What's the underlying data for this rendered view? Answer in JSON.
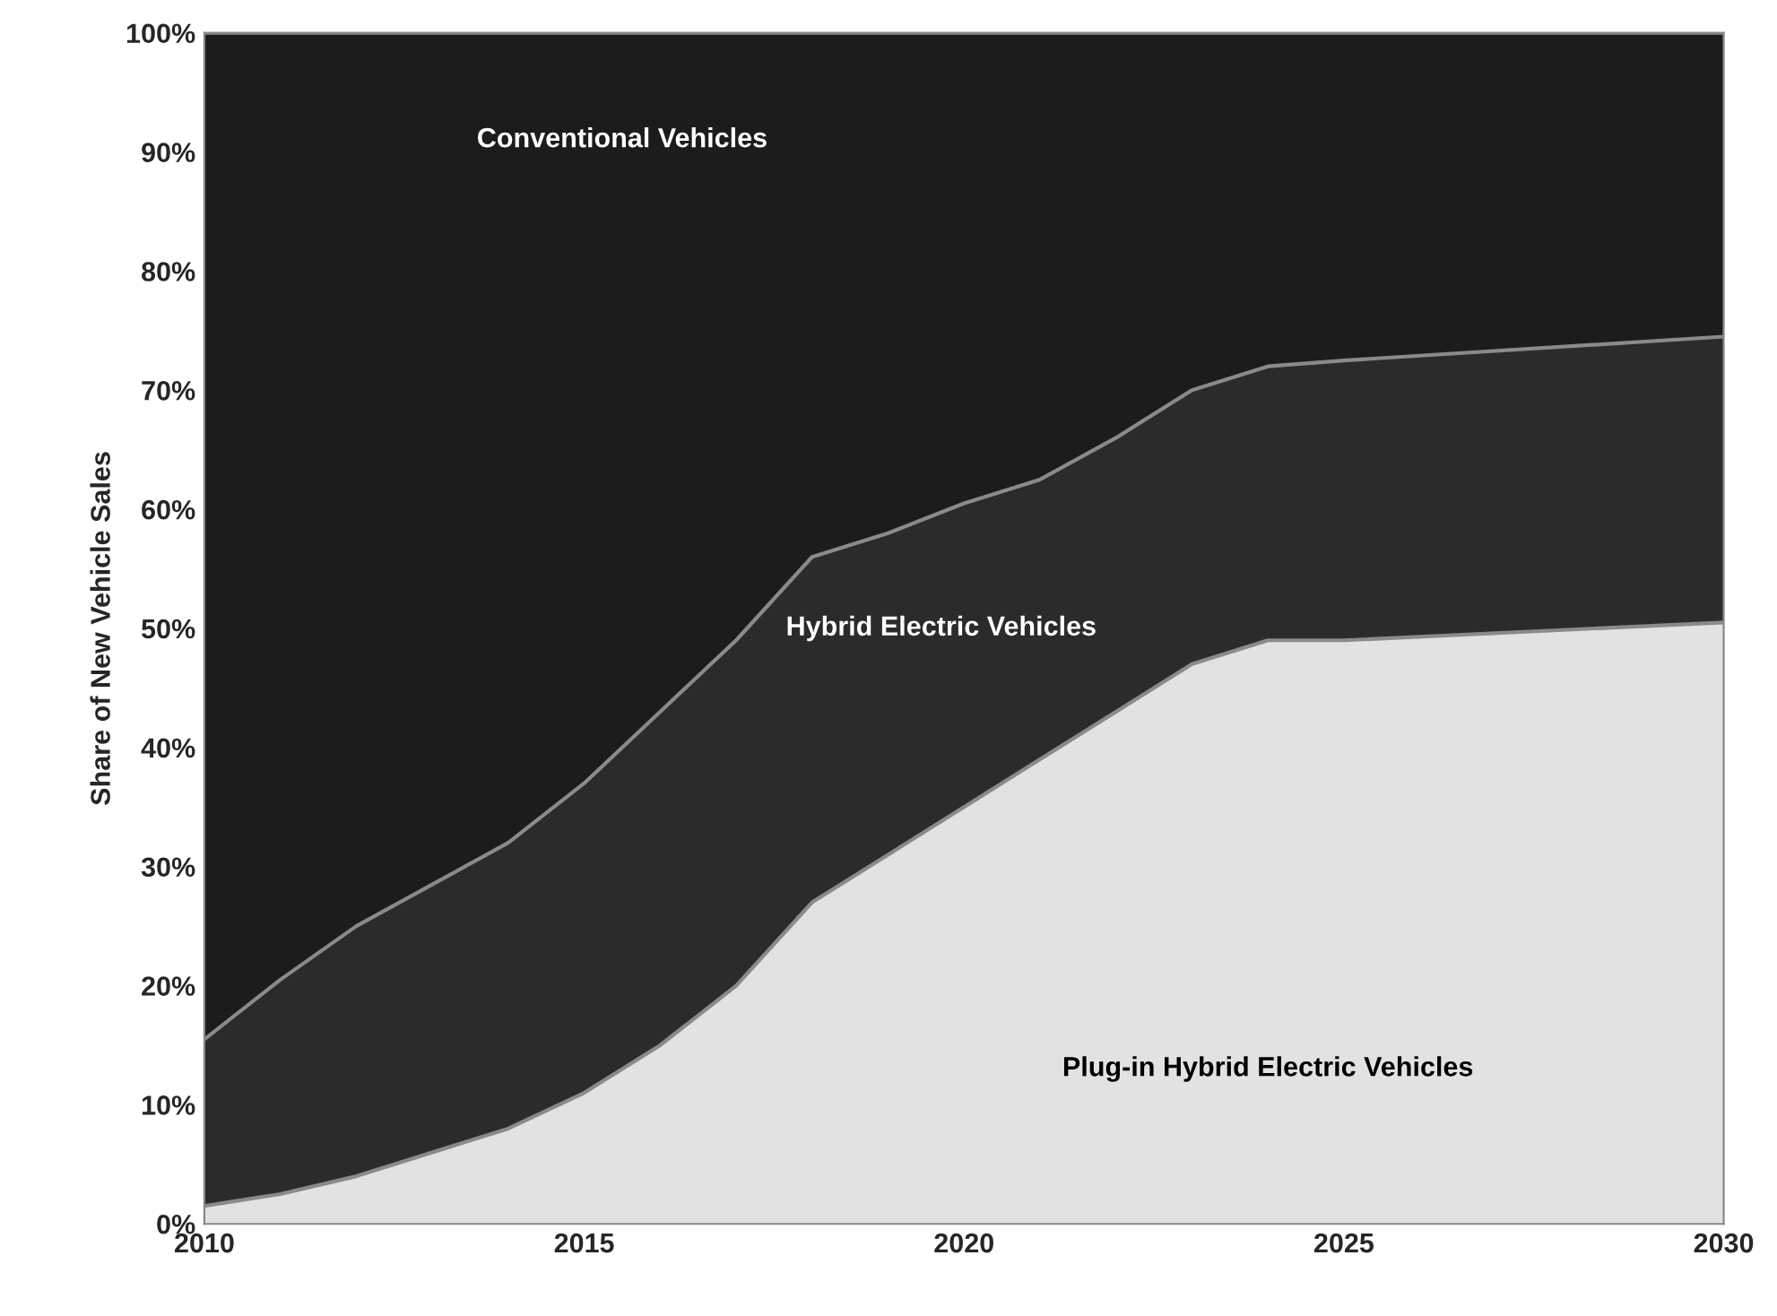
{
  "chart_data": {
    "type": "area",
    "stacked": true,
    "ylabel": "Share of New Vehicle Sales",
    "x": [
      2010,
      2011,
      2012,
      2013,
      2014,
      2015,
      2016,
      2017,
      2018,
      2019,
      2020,
      2021,
      2022,
      2023,
      2024,
      2025,
      2030
    ],
    "series": [
      {
        "name": "Plug-in Hybrid Electric Vehicles",
        "color": "#e2e2e2",
        "values": [
          1.5,
          2.5,
          4,
          6,
          8,
          11,
          15,
          20,
          27,
          31,
          35,
          39,
          43,
          47,
          49,
          49,
          50.5
        ]
      },
      {
        "name": "Hybrid Electric Vehicles",
        "color": "#2b2b2b",
        "values": [
          14,
          18,
          21,
          22.5,
          24,
          26,
          28,
          29,
          29,
          27,
          25.5,
          23.5,
          23,
          23,
          23,
          23.5,
          24
        ]
      },
      {
        "name": "Conventional Vehicles",
        "color": "#1c1c1c",
        "values": [
          84.5,
          79.5,
          75,
          71.5,
          68,
          63,
          57,
          51,
          44,
          42,
          39.5,
          37.5,
          34,
          30,
          28,
          27.5,
          25.5
        ]
      }
    ],
    "xlim": [
      2010,
      2030
    ],
    "xticks": [
      2010,
      2015,
      2020,
      2025,
      2030
    ],
    "ylim": [
      0,
      100
    ],
    "yticks": [
      {
        "value": 0,
        "label": "0%"
      },
      {
        "value": 10,
        "label": "10%"
      },
      {
        "value": 20,
        "label": "20%"
      },
      {
        "value": 30,
        "label": "30%"
      },
      {
        "value": 40,
        "label": "40%"
      },
      {
        "value": 50,
        "label": "50%"
      },
      {
        "value": 60,
        "label": "60%"
      },
      {
        "value": 70,
        "label": "70%"
      },
      {
        "value": 80,
        "label": "80%"
      },
      {
        "value": 90,
        "label": "90%"
      },
      {
        "value": 100,
        "label": "100%"
      }
    ],
    "legend": false
  }
}
